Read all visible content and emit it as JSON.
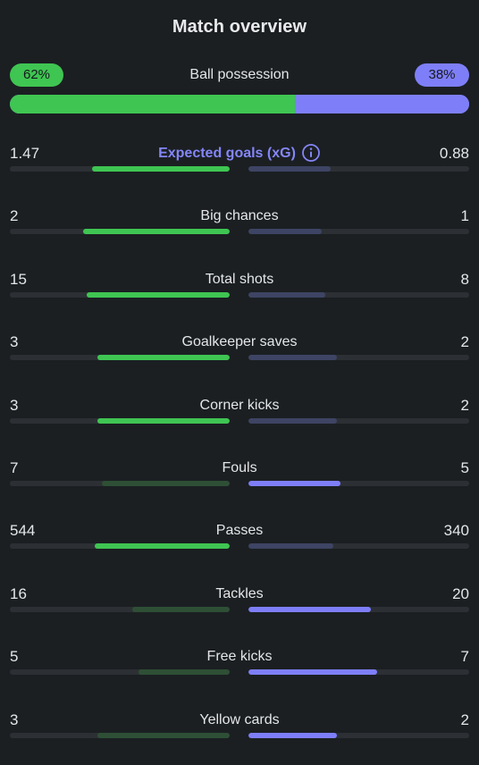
{
  "title": "Match overview",
  "colors": {
    "home": "#3fc552",
    "away": "#7e7ff8",
    "home_dim": "#2e4f35",
    "away_dim": "#3e4463",
    "track": "#2c3034",
    "background": "#1b1f22",
    "accent_label": "#8486f7"
  },
  "possession": {
    "label": "Ball possession",
    "home_text": "62%",
    "away_text": "38%",
    "home_fraction": 0.62,
    "away_fraction": 0.38
  },
  "stats": [
    {
      "label": "Expected goals (xG)",
      "home": "1.47",
      "away": "0.88",
      "home_value": 1.47,
      "away_value": 0.88,
      "accent": true,
      "icon": "info-icon"
    },
    {
      "label": "Big chances",
      "home": "2",
      "away": "1",
      "home_value": 2,
      "away_value": 1
    },
    {
      "label": "Total shots",
      "home": "15",
      "away": "8",
      "home_value": 15,
      "away_value": 8
    },
    {
      "label": "Goalkeeper saves",
      "home": "3",
      "away": "2",
      "home_value": 3,
      "away_value": 2
    },
    {
      "label": "Corner kicks",
      "home": "3",
      "away": "2",
      "home_value": 3,
      "away_value": 2
    },
    {
      "label": "Fouls",
      "home": "7",
      "away": "5",
      "home_value": 7,
      "away_value": 5,
      "lower_is_better": true
    },
    {
      "label": "Passes",
      "home": "544",
      "away": "340",
      "home_value": 544,
      "away_value": 340
    },
    {
      "label": "Tackles",
      "home": "16",
      "away": "20",
      "home_value": 16,
      "away_value": 20
    },
    {
      "label": "Free kicks",
      "home": "5",
      "away": "7",
      "home_value": 5,
      "away_value": 7
    },
    {
      "label": "Yellow cards",
      "home": "3",
      "away": "2",
      "home_value": 3,
      "away_value": 2,
      "lower_is_better": true
    }
  ]
}
